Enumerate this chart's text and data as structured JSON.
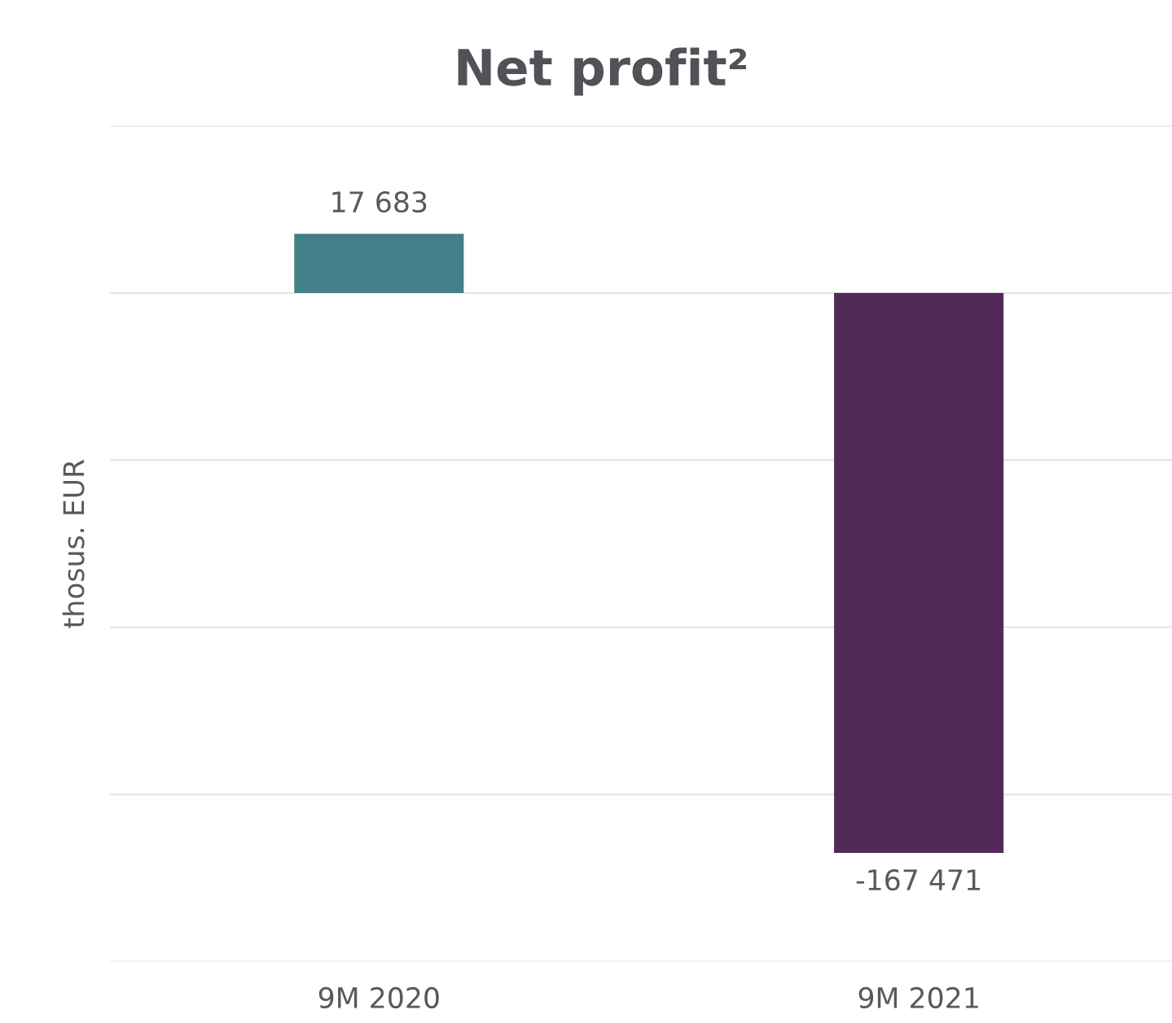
{
  "chart_data": {
    "type": "bar",
    "title": "Net profit²",
    "ylabel": "thosus. EUR",
    "categories": [
      "9M 2020",
      "9M 2021"
    ],
    "values": [
      17683,
      -167471
    ],
    "colors": [
      "#437f88",
      "#522a57"
    ],
    "value_labels": [
      "17 683",
      "-167 471"
    ],
    "ylim": [
      -200000,
      50000
    ],
    "yticks": [
      {
        "value": -200000,
        "label": null
      },
      {
        "value": -150000,
        "label": null
      },
      {
        "value": -100000,
        "label": null
      },
      {
        "value": -50000,
        "label": null
      },
      {
        "value": 0,
        "label": null
      },
      {
        "value": 50000,
        "label": null
      }
    ],
    "grid": "y",
    "tick_labels": "x"
  }
}
